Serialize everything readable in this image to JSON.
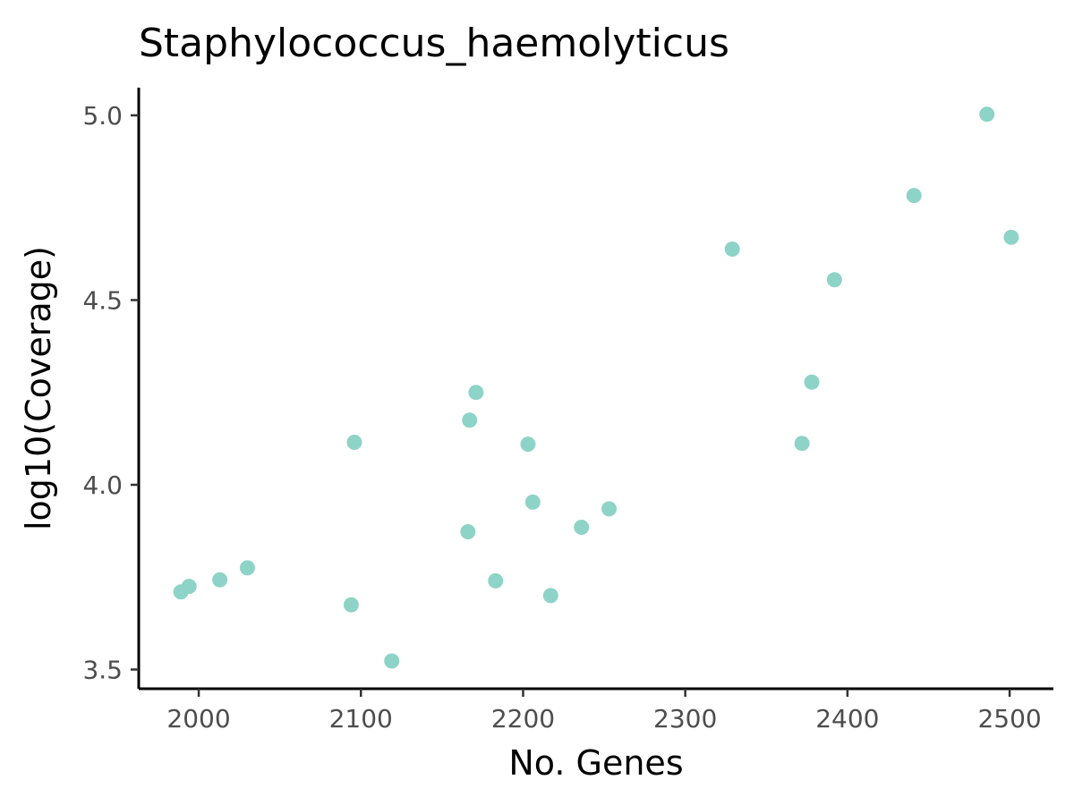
{
  "chart_data": {
    "type": "scatter",
    "title": "Staphylococcus_haemolyticus",
    "xlabel": "No. Genes",
    "ylabel": "log10(Coverage)",
    "xlim": [
      1963,
      2527
    ],
    "ylim": [
      3.448,
      5.075
    ],
    "xticks": [
      2000,
      2100,
      2200,
      2300,
      2400,
      2500
    ],
    "yticks": [
      3.5,
      4.0,
      4.5,
      5.0
    ],
    "xtick_labels": [
      "2000",
      "2100",
      "2200",
      "2300",
      "2400",
      "2500"
    ],
    "ytick_labels": [
      "3.5",
      "4.0",
      "4.5",
      "5.0"
    ],
    "grid": false,
    "point_color": "#8ed3c7",
    "points": [
      {
        "x": 1989,
        "y": 3.71
      },
      {
        "x": 1994,
        "y": 3.725
      },
      {
        "x": 2013,
        "y": 3.743
      },
      {
        "x": 2030,
        "y": 3.775
      },
      {
        "x": 2094,
        "y": 3.675
      },
      {
        "x": 2096,
        "y": 4.115
      },
      {
        "x": 2119,
        "y": 3.523
      },
      {
        "x": 2166,
        "y": 3.873
      },
      {
        "x": 2167,
        "y": 4.175
      },
      {
        "x": 2171,
        "y": 4.25
      },
      {
        "x": 2183,
        "y": 3.74
      },
      {
        "x": 2203,
        "y": 4.11
      },
      {
        "x": 2206,
        "y": 3.953
      },
      {
        "x": 2217,
        "y": 3.7
      },
      {
        "x": 2236,
        "y": 3.885
      },
      {
        "x": 2253,
        "y": 3.935
      },
      {
        "x": 2329,
        "y": 4.638
      },
      {
        "x": 2372,
        "y": 4.112
      },
      {
        "x": 2378,
        "y": 4.278
      },
      {
        "x": 2392,
        "y": 4.555
      },
      {
        "x": 2441,
        "y": 4.783
      },
      {
        "x": 2486,
        "y": 5.003
      },
      {
        "x": 2501,
        "y": 4.67
      }
    ]
  }
}
